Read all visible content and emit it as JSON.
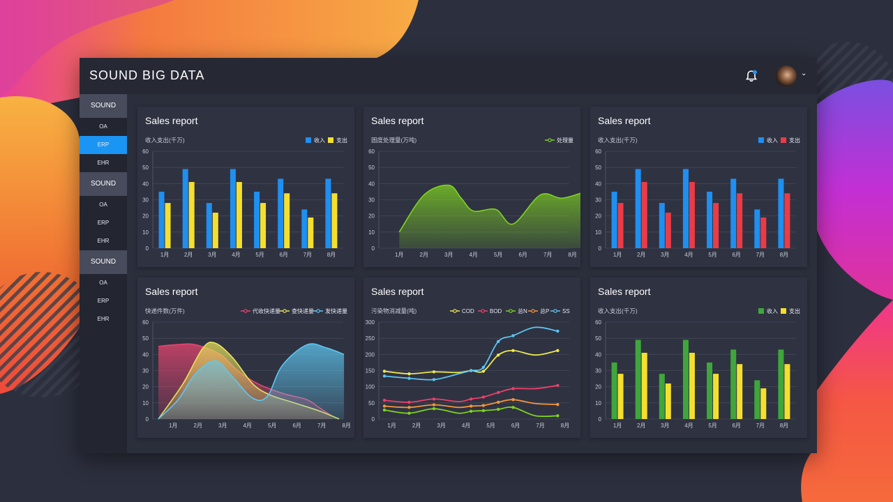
{
  "app": {
    "title": "SOUND BIG DATA"
  },
  "header": {
    "bell_icon": "bell-icon",
    "avatar": "user-avatar",
    "caret_icon": "chevron-down-icon"
  },
  "sidebar": {
    "groups": [
      {
        "label": "SOUND",
        "items": [
          "OA",
          "ERP",
          "EHR"
        ],
        "active": 1
      },
      {
        "label": "SOUND",
        "items": [
          "OA",
          "ERP",
          "EHR"
        ],
        "active": -1
      },
      {
        "label": "SOUND",
        "items": [
          "OA",
          "ERP",
          "EHR"
        ],
        "active": -1
      }
    ]
  },
  "colors": {
    "blue": "#1f8ff0",
    "yellow": "#f5df2e",
    "red": "#eb3b46",
    "green": "#3fa63c",
    "bg": "#2c2f3d",
    "card": "#2f3241",
    "active": "#1b95f3"
  },
  "cards": [
    {
      "title": "Sales report"
    },
    {
      "title": "Sales report"
    },
    {
      "title": "Sales report"
    },
    {
      "title": "Sales report"
    },
    {
      "title": "Sales report"
    },
    {
      "title": "Sales report"
    }
  ],
  "chart_data": [
    {
      "type": "bar",
      "title": "Sales report",
      "ylabel": "收入支出(千万)",
      "categories": [
        "1月",
        "2月",
        "3月",
        "4月",
        "5月",
        "6月",
        "7月",
        "8月"
      ],
      "yticks": [
        0,
        10,
        20,
        30,
        40,
        50,
        60
      ],
      "ylim": [
        0,
        60
      ],
      "series": [
        {
          "name": "收入",
          "color": "#1f8ff0",
          "values": [
            35,
            49,
            28,
            49,
            35,
            43,
            24,
            43
          ]
        },
        {
          "name": "支出",
          "color": "#f5df2e",
          "values": [
            28,
            41,
            22,
            41,
            28,
            34,
            19,
            34
          ]
        }
      ],
      "legend": "top-right",
      "grid": true
    },
    {
      "type": "area",
      "title": "Sales report",
      "ylabel": "固度处理量(万吨)",
      "categories": [
        "1月",
        "2月",
        "3月",
        "4月",
        "5月",
        "6月",
        "7月",
        "8月"
      ],
      "yticks": [
        0,
        10,
        20,
        30,
        40,
        50,
        60
      ],
      "ylim": [
        0,
        60
      ],
      "series": [
        {
          "name": "处理量",
          "color": "#7ed321",
          "x": [
            0.6,
            1.6,
            2.6,
            3.1,
            3.6,
            4.5,
            5.2,
            6.3,
            7.2,
            8.3
          ],
          "values": [
            10,
            33,
            39,
            31,
            23,
            24,
            15,
            33,
            31,
            36
          ]
        }
      ],
      "legend": "top-right",
      "grid": true
    },
    {
      "type": "bar",
      "title": "Sales report",
      "ylabel": "收入支出(千万)",
      "categories": [
        "1月",
        "2月",
        "3月",
        "4月",
        "5月",
        "6月",
        "7月",
        "8月"
      ],
      "yticks": [
        0,
        10,
        20,
        30,
        40,
        50,
        60
      ],
      "ylim": [
        0,
        60
      ],
      "series": [
        {
          "name": "收入",
          "color": "#1f8ff0",
          "values": [
            35,
            49,
            28,
            49,
            35,
            43,
            24,
            43
          ]
        },
        {
          "name": "支出",
          "color": "#eb3b46",
          "values": [
            28,
            41,
            22,
            41,
            28,
            34,
            19,
            34
          ]
        }
      ],
      "legend": "top-right",
      "grid": true
    },
    {
      "type": "area",
      "title": "Sales report",
      "ylabel": "快递件数(万件)",
      "categories": [
        "1月",
        "2月",
        "3月",
        "4月",
        "5月",
        "6月",
        "7月",
        "8月"
      ],
      "yticks": [
        0,
        10,
        20,
        30,
        40,
        50,
        60
      ],
      "ylim": [
        0,
        60
      ],
      "series": [
        {
          "name": "代收快递量",
          "color": "#e8456f",
          "x": [
            0,
            0.7,
            1.5,
            2.5,
            3.2,
            4,
            5,
            6,
            6.5,
            7
          ],
          "values": [
            45,
            46,
            46,
            40,
            30,
            22,
            16,
            12,
            7,
            2
          ]
        },
        {
          "name": "查快递量",
          "color": "#e7e25b",
          "x": [
            0,
            1,
            1.8,
            2.3,
            3,
            3.8,
            4.5,
            5.5,
            6.5,
            7.3
          ],
          "values": [
            0,
            22,
            44,
            47,
            38,
            22,
            15,
            10,
            5,
            0
          ]
        },
        {
          "name": "发快递量",
          "color": "#5ec8f2",
          "x": [
            0,
            0.8,
            1.5,
            2.3,
            3,
            3.8,
            4.4,
            5,
            6,
            6.8,
            7.5
          ],
          "values": [
            0,
            12,
            28,
            36,
            26,
            13,
            14,
            33,
            46,
            44,
            40
          ]
        }
      ],
      "legend": "top-right",
      "grid": true
    },
    {
      "type": "line",
      "title": "Sales report",
      "ylabel": "污染物消减量(吨)",
      "categories": [
        "1月",
        "2月",
        "3月",
        "4月",
        "5月",
        "6月",
        "7月",
        "8月"
      ],
      "yticks": [
        0,
        50,
        100,
        150,
        200,
        250,
        300
      ],
      "ylim": [
        0,
        300
      ],
      "x": [
        0,
        1,
        2,
        3,
        3.5,
        4,
        4.6,
        5.2,
        6.1,
        7
      ],
      "series": [
        {
          "name": "COD",
          "color": "#ece84f",
          "values": [
            148,
            140,
            146,
            144,
            150,
            148,
            198,
            212,
            198,
            212
          ]
        },
        {
          "name": "BOD",
          "color": "#ef3f6a",
          "values": [
            58,
            52,
            62,
            54,
            62,
            68,
            82,
            94,
            94,
            104
          ]
        },
        {
          "name": "总N",
          "color": "#7ed321",
          "values": [
            28,
            18,
            32,
            18,
            24,
            26,
            30,
            36,
            10,
            10
          ]
        },
        {
          "name": "总P",
          "color": "#f6953a",
          "values": [
            40,
            36,
            44,
            36,
            40,
            42,
            52,
            60,
            48,
            45
          ]
        },
        {
          "name": "SS",
          "color": "#5bc5f2",
          "values": [
            133,
            126,
            122,
            140,
            150,
            160,
            240,
            258,
            284,
            272
          ]
        }
      ],
      "legend": "top-right",
      "grid": true
    },
    {
      "type": "bar",
      "title": "Sales report",
      "ylabel": "收入支出(千万)",
      "categories": [
        "1月",
        "2月",
        "3月",
        "4月",
        "5月",
        "6月",
        "7月",
        "8月"
      ],
      "yticks": [
        0,
        10,
        20,
        30,
        40,
        50,
        60
      ],
      "ylim": [
        0,
        60
      ],
      "series": [
        {
          "name": "收入",
          "color": "#3fa63c",
          "values": [
            35,
            49,
            28,
            49,
            35,
            43,
            24,
            43
          ]
        },
        {
          "name": "支出",
          "color": "#f5df2e",
          "values": [
            28,
            41,
            22,
            41,
            28,
            34,
            19,
            34
          ]
        }
      ],
      "legend": "top-right",
      "grid": true
    }
  ]
}
